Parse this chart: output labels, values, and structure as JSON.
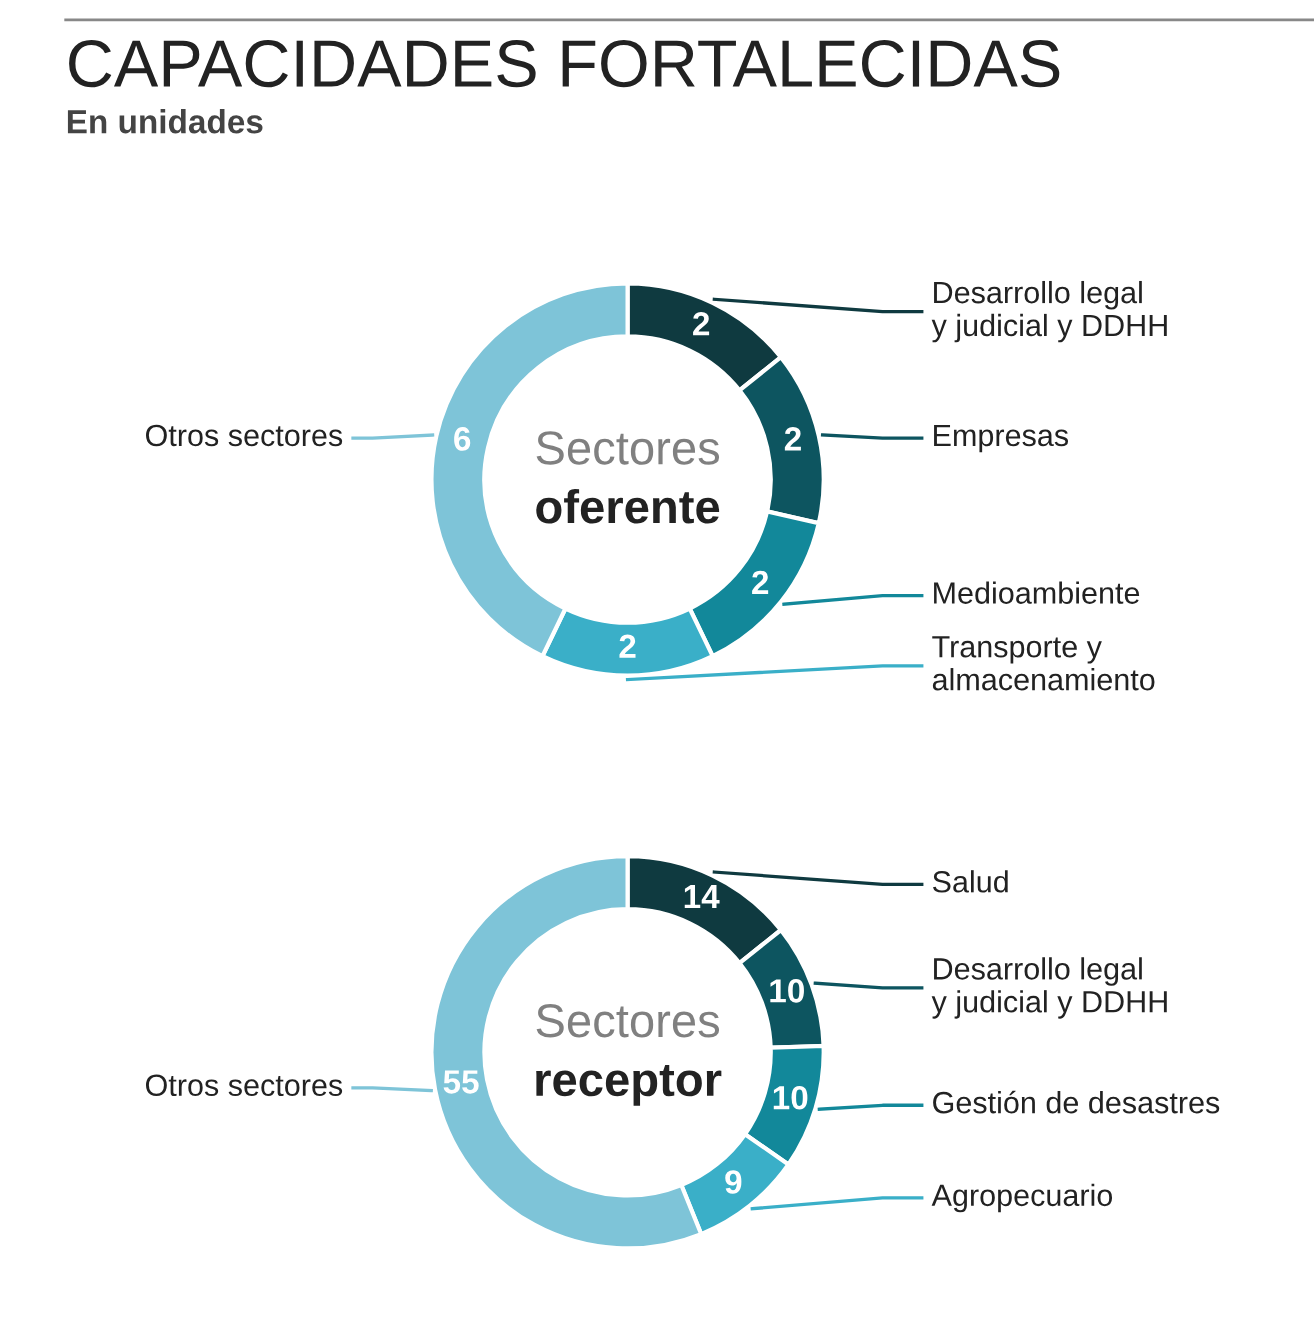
{
  "chart_data": [
    {
      "type": "donut",
      "title": "CAPACIDADES FORTALECIDAS",
      "subtitle": "En unidades",
      "annotations": [
        "Sectores",
        "oferente"
      ],
      "categories": [
        "Desarrollo legal\ny judicial y DDHH",
        "Empresas",
        "Medioambiente",
        "Transporte y\nalmacenamiento",
        "Otros sectores"
      ],
      "values": [
        2,
        2,
        2,
        2,
        6
      ],
      "colors": [
        "#0f3a40",
        "#0d5560",
        "#12889a",
        "#3aafc8",
        "#7ec4d8"
      ],
      "data_labels": true,
      "legend": false
    },
    {
      "type": "donut",
      "annotations": [
        "Sectores",
        "receptor"
      ],
      "categories": [
        "Salud",
        "Desarrollo legal\ny judicial y DDHH",
        "Gestión de desastres",
        "Agropecuario",
        "Otros sectores"
      ],
      "values": [
        14,
        10,
        10,
        9,
        55
      ],
      "colors": [
        "#0f3a40",
        "#0d5560",
        "#12889a",
        "#3aafc8",
        "#7ec4d8"
      ],
      "data_labels": true,
      "legend": false
    }
  ]
}
